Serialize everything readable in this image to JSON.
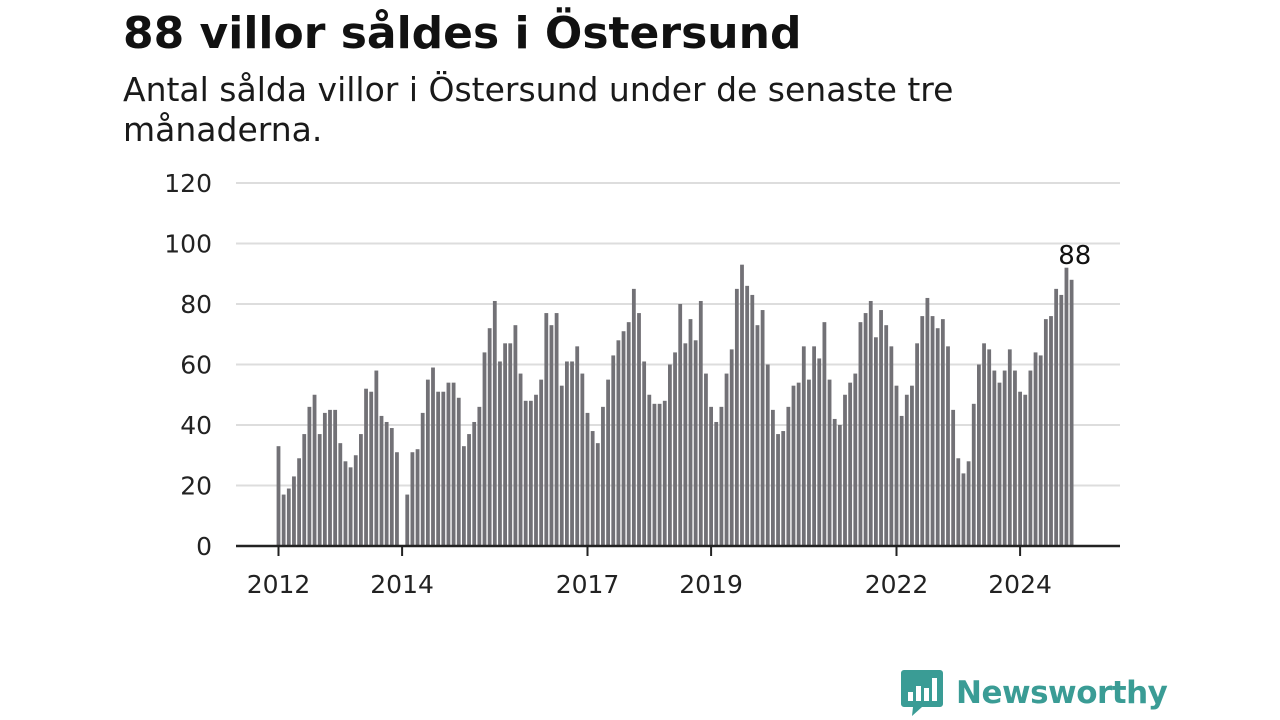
{
  "chart_data": {
    "type": "bar",
    "title": "88 villor såldes i Östersund",
    "subtitle": "Antal sålda villor i Östersund under de senaste tre månaderna.",
    "xlabel": "",
    "ylabel": "",
    "ylim": [
      0,
      120
    ],
    "yticks": [
      0,
      20,
      40,
      60,
      80,
      100,
      120
    ],
    "grid": true,
    "legend": "none",
    "first_period": "2012-01",
    "x_tick_labels": [
      {
        "label": "2012",
        "period": "2012-01"
      },
      {
        "label": "2014",
        "period": "2014-01"
      },
      {
        "label": "2017",
        "period": "2017-01"
      },
      {
        "label": "2019",
        "period": "2019-01"
      },
      {
        "label": "2022",
        "period": "2022-01"
      },
      {
        "label": "2024",
        "period": "2024-01"
      }
    ],
    "values": [
      33,
      17,
      19,
      23,
      29,
      37,
      46,
      50,
      37,
      44,
      45,
      45,
      34,
      28,
      26,
      30,
      37,
      52,
      51,
      58,
      43,
      41,
      39,
      31,
      0,
      17,
      31,
      32,
      44,
      55,
      59,
      51,
      51,
      54,
      54,
      49,
      33,
      37,
      41,
      46,
      64,
      72,
      81,
      61,
      67,
      67,
      73,
      57,
      48,
      48,
      50,
      55,
      77,
      73,
      77,
      53,
      61,
      61,
      66,
      57,
      44,
      38,
      34,
      46,
      55,
      63,
      68,
      71,
      74,
      85,
      77,
      61,
      50,
      47,
      47,
      48,
      60,
      64,
      80,
      67,
      75,
      68,
      81,
      57,
      46,
      41,
      46,
      57,
      65,
      85,
      93,
      86,
      83,
      73,
      78,
      60,
      45,
      37,
      38,
      46,
      53,
      54,
      66,
      55,
      66,
      62,
      74,
      55,
      42,
      40,
      50,
      54,
      57,
      74,
      77,
      81,
      69,
      78,
      73,
      66,
      53,
      43,
      50,
      53,
      67,
      76,
      82,
      76,
      72,
      75,
      66,
      45,
      29,
      24,
      28,
      47,
      60,
      67,
      65,
      58,
      54,
      58,
      65,
      58,
      51,
      50,
      58,
      64,
      63,
      75,
      76,
      85,
      83,
      92,
      88
    ],
    "highlight": {
      "index": 155,
      "value": 88,
      "label": "88"
    },
    "colors": {
      "bar": "#727176",
      "highlight": "#1f9c92",
      "grid": "#dddddd",
      "axis": "#222222"
    }
  },
  "brand": {
    "name": "Newsworthy",
    "icon": "newsworthy-logo-icon",
    "color": "#3a9c95"
  }
}
